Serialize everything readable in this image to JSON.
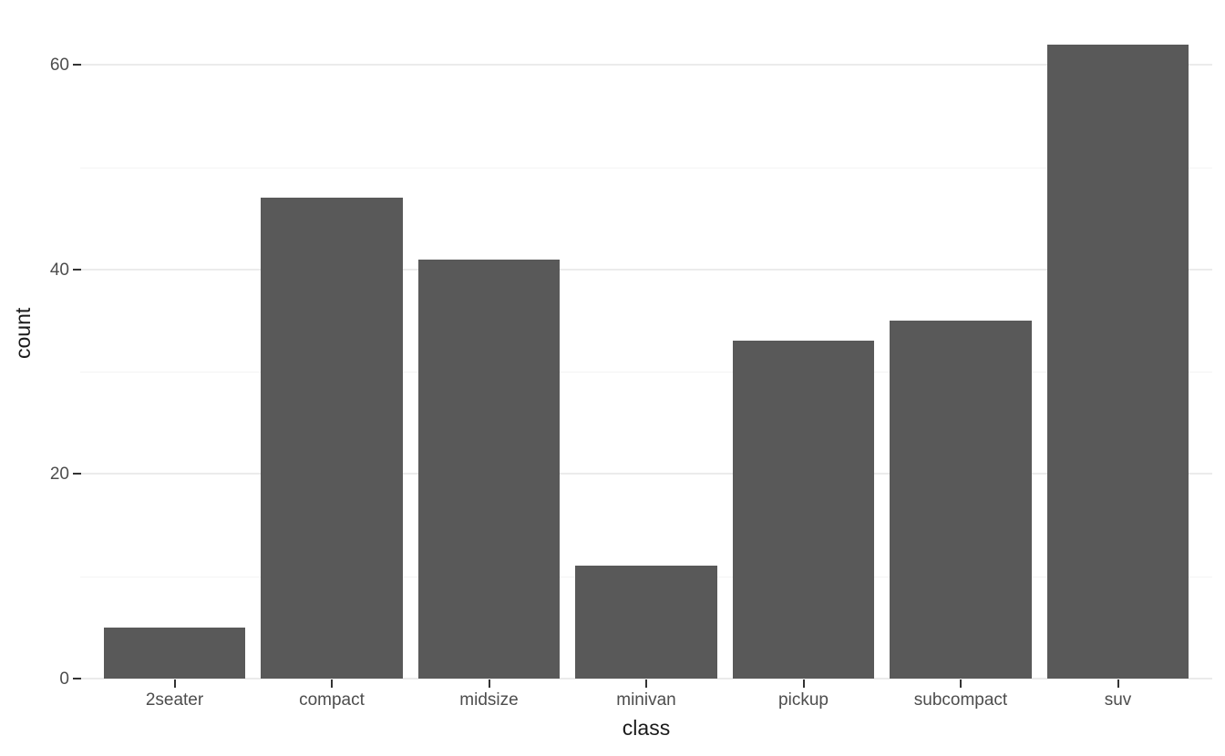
{
  "chart_data": {
    "type": "bar",
    "title": "",
    "categories": [
      "2seater",
      "compact",
      "midsize",
      "minivan",
      "pickup",
      "subcompact",
      "suv"
    ],
    "values": [
      5,
      47,
      41,
      11,
      33,
      35,
      62
    ],
    "xlabel": "class",
    "ylabel": "count",
    "ylim": [
      0,
      65.1
    ],
    "yticks_major": [
      0,
      20,
      40,
      60
    ],
    "yticks_minor": [
      10,
      30,
      50
    ],
    "legend": "none",
    "grid": "horizontal-only",
    "colors": {
      "bar_fill": "#595959",
      "grid_major": "#ebebeb",
      "grid_minor": "#f4f4f4",
      "tick_mark": "#333333",
      "tick_label": "#4d4d4d",
      "axis_title": "#1a1a1a",
      "background": "#ffffff"
    }
  }
}
